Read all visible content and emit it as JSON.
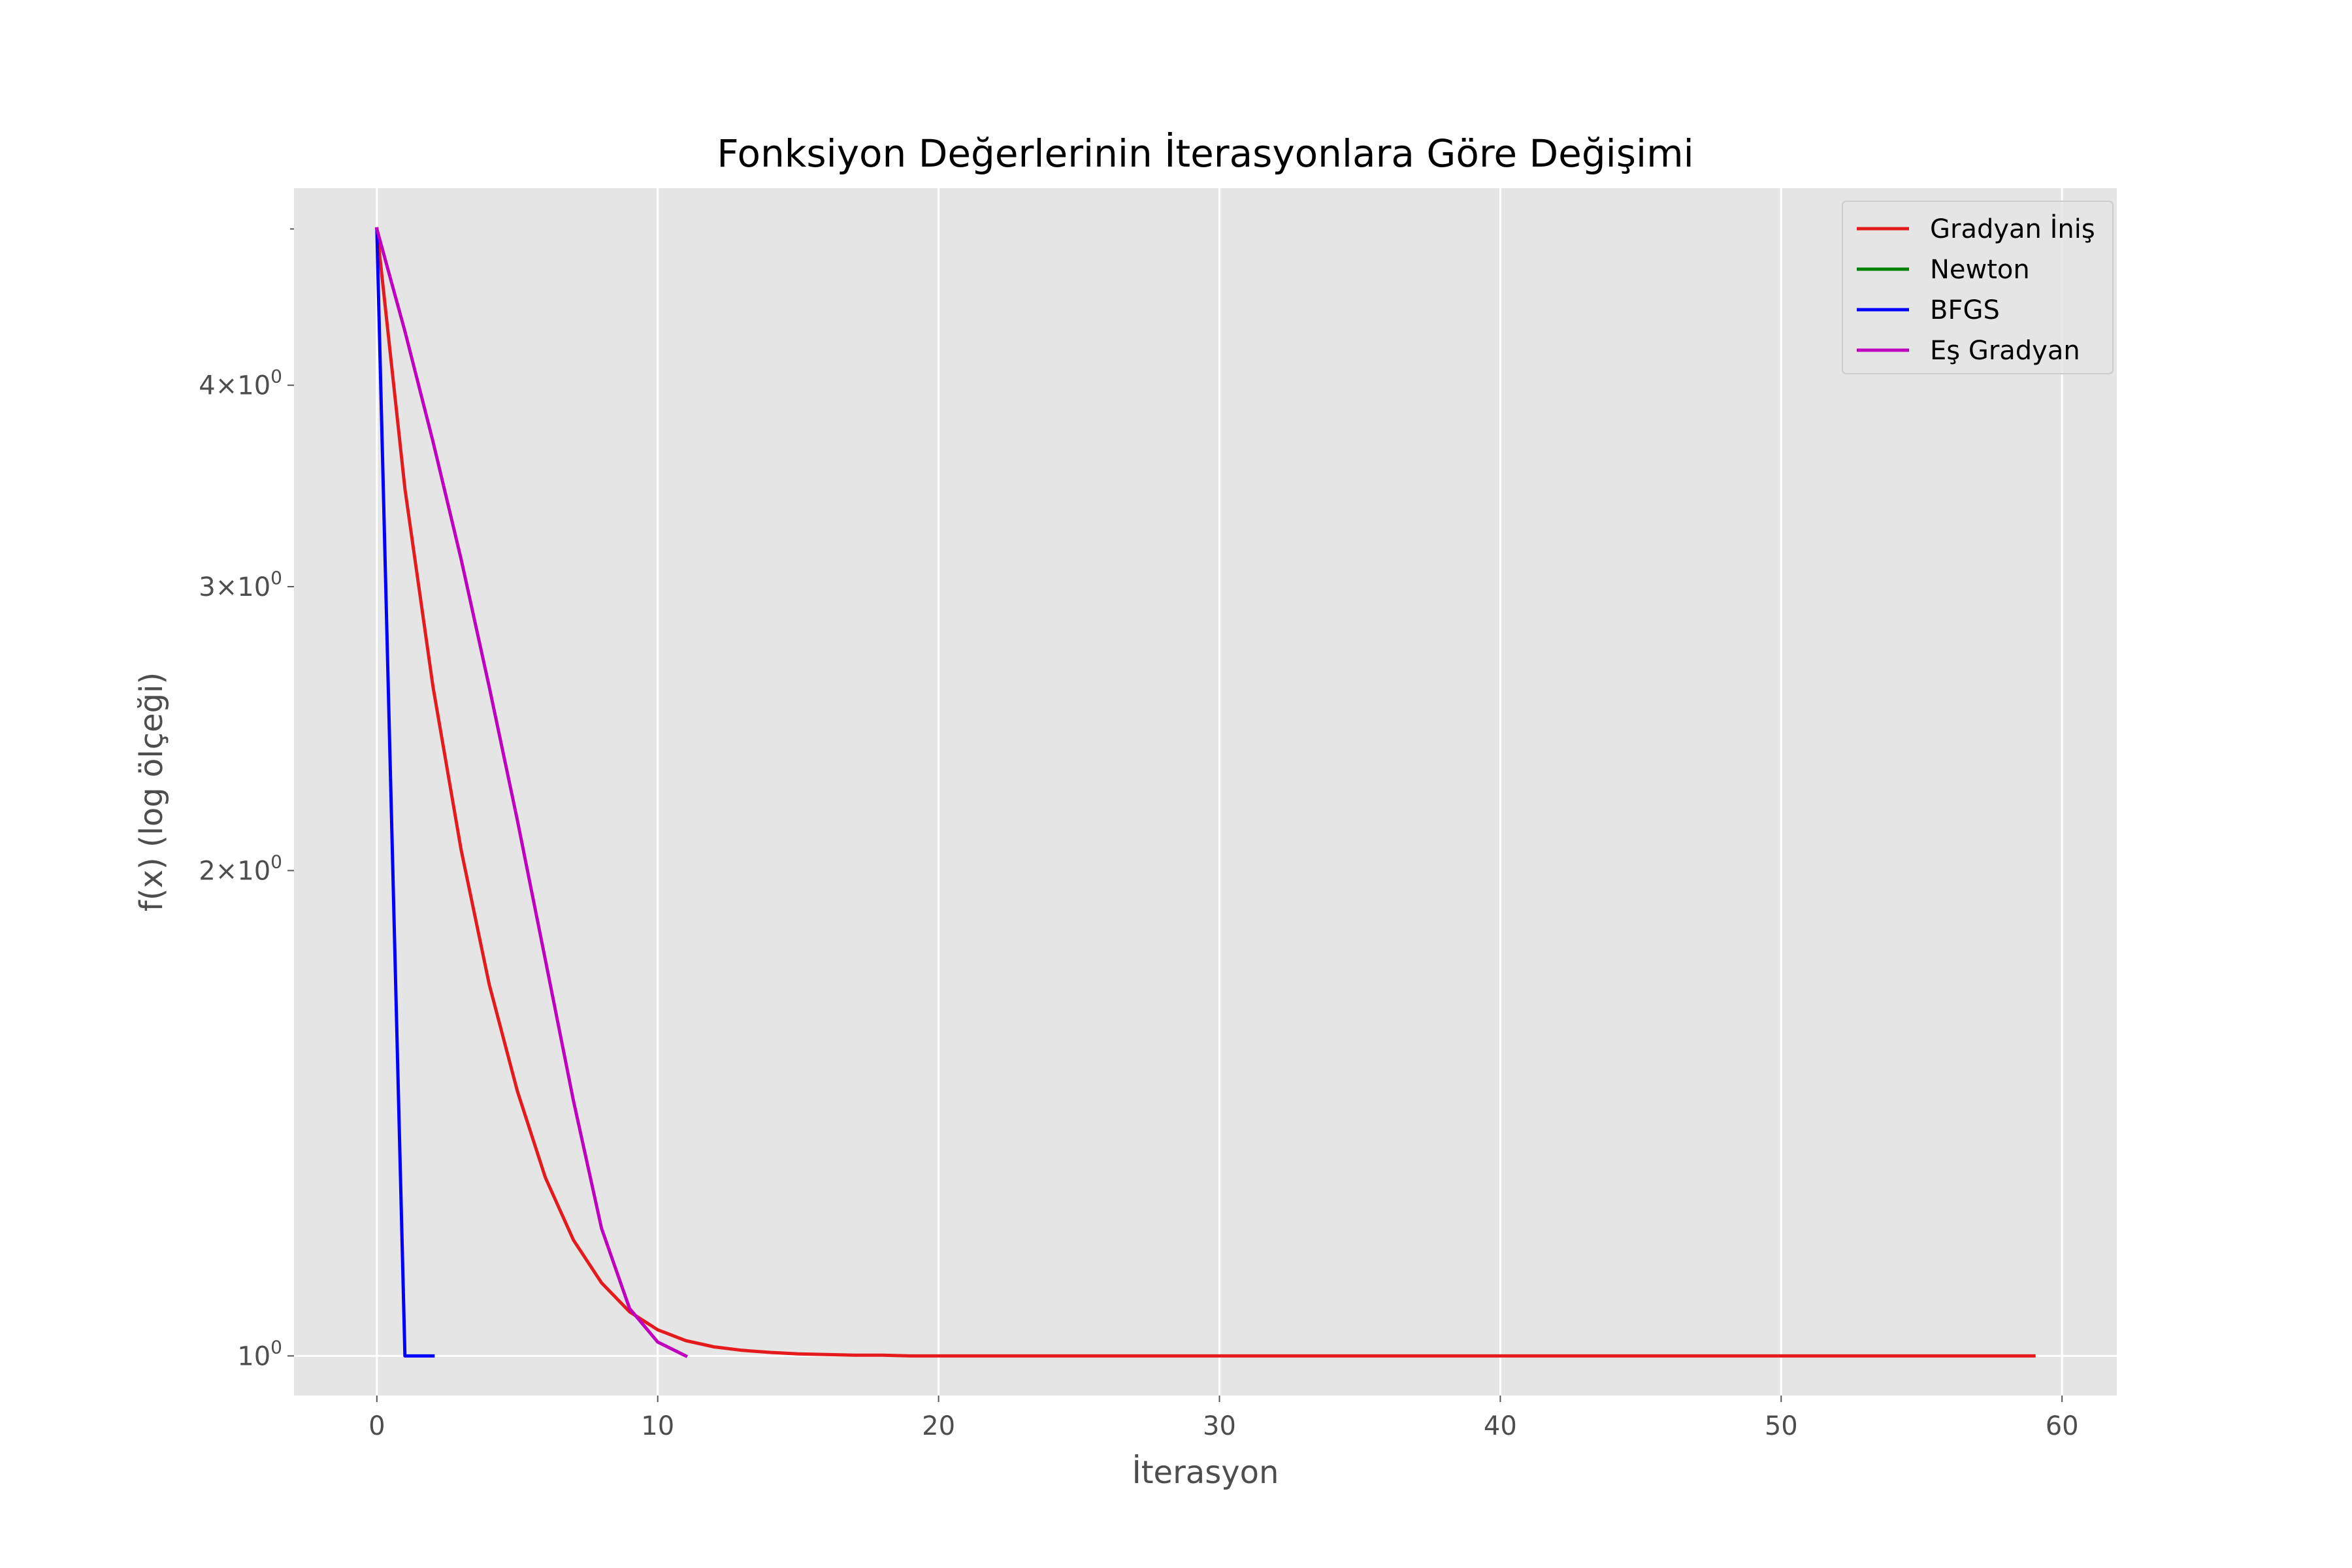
{
  "chart_data": {
    "type": "line",
    "title": "Fonksiyon Değerlerinin İterasyonlara Göre Değişimi",
    "xlabel": "İterasyon",
    "ylabel": "f(x) (log ölçeği)",
    "xlim": [
      -2.95,
      61.95
    ],
    "ylim": [
      0.945,
      5.3
    ],
    "yscale": "log",
    "grid": true,
    "legend_position": "top-right",
    "x_ticks": [
      0,
      10,
      20,
      30,
      40,
      50,
      60
    ],
    "x_tick_labels": [
      "0",
      "10",
      "20",
      "30",
      "40",
      "50",
      "60"
    ],
    "y_ticks": [
      {
        "value": 1,
        "base": "10",
        "exp": "0",
        "mantissa": ""
      },
      {
        "value": 2,
        "base": "10",
        "exp": "0",
        "mantissa": "2"
      },
      {
        "value": 3,
        "base": "10",
        "exp": "0",
        "mantissa": "3"
      },
      {
        "value": 4,
        "base": "10",
        "exp": "0",
        "mantissa": "4"
      }
    ],
    "series": [
      {
        "name": "Gradyan İniş",
        "color": "#e41a1c",
        "x": [
          0,
          1,
          2,
          3,
          4,
          5,
          6,
          7,
          8,
          9,
          10,
          11,
          12,
          13,
          14,
          15,
          16,
          17,
          18,
          19,
          20,
          21,
          22,
          23,
          24,
          25,
          26,
          27,
          28,
          29,
          30,
          31,
          32,
          33,
          34,
          35,
          36,
          37,
          38,
          39,
          40,
          41,
          42,
          43,
          44,
          45,
          46,
          47,
          48,
          49,
          50,
          51,
          52,
          53,
          54,
          55,
          56,
          57,
          58,
          59
        ],
        "y": [
          5.0,
          3.45,
          2.6,
          2.06,
          1.7,
          1.46,
          1.29,
          1.18,
          1.11,
          1.065,
          1.038,
          1.022,
          1.013,
          1.008,
          1.005,
          1.003,
          1.002,
          1.001,
          1.001,
          1.0,
          1.0,
          1.0,
          1.0,
          1.0,
          1.0,
          1.0,
          1.0,
          1.0,
          1.0,
          1.0,
          1.0,
          1.0,
          1.0,
          1.0,
          1.0,
          1.0,
          1.0,
          1.0,
          1.0,
          1.0,
          1.0,
          1.0,
          1.0,
          1.0,
          1.0,
          1.0,
          1.0,
          1.0,
          1.0,
          1.0,
          1.0,
          1.0,
          1.0,
          1.0,
          1.0,
          1.0,
          1.0,
          1.0,
          1.0,
          1.0
        ]
      },
      {
        "name": "Newton",
        "color": "#008000",
        "x": [
          0,
          1
        ],
        "y": [
          5.0,
          1.0
        ]
      },
      {
        "name": "BFGS",
        "color": "#0000ff",
        "x": [
          0,
          1,
          2
        ],
        "y": [
          5.0,
          1.0,
          1.0
        ]
      },
      {
        "name": "Eş Gradyan",
        "color": "#bf00bf",
        "x": [
          0,
          1,
          2,
          3,
          4,
          5,
          6,
          7,
          8,
          9,
          10,
          11
        ],
        "y": [
          5.0,
          4.32,
          3.69,
          3.12,
          2.6,
          2.15,
          1.76,
          1.44,
          1.2,
          1.07,
          1.02,
          1.0
        ]
      }
    ]
  }
}
